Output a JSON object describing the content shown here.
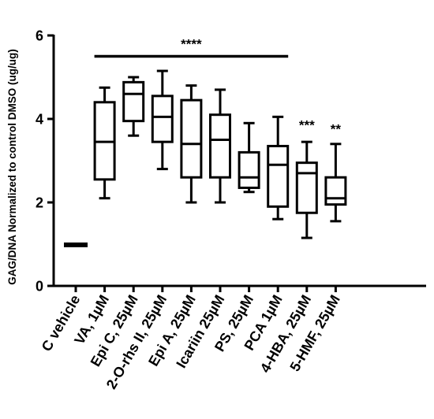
{
  "chart_data": {
    "type": "box",
    "title": "",
    "xlabel": "",
    "ylabel": "GAG/DNA Normalized to control DMSO (ug/ug)",
    "ylim": [
      0,
      6
    ],
    "yticks": [
      "0",
      "2",
      "4",
      "6"
    ],
    "grid": false,
    "legend": "none",
    "line_color": "#000000",
    "categories": [
      "C vehicle",
      "VA, 1µM",
      "Epi C, 25µM",
      "2-O-rhs II, 25µM",
      "Epi A, 25µM",
      "Icariin 25µM",
      "PS, 25µM",
      "PCA 1µM",
      "4-HBA, 25µM",
      "5-HMF, 25µM"
    ],
    "boxes": [
      {
        "min": 0.96,
        "q1": 0.96,
        "median": 1.0,
        "q3": 1.04,
        "max": 1.04
      },
      {
        "min": 2.1,
        "q1": 2.55,
        "median": 3.45,
        "q3": 4.4,
        "max": 4.75
      },
      {
        "min": 3.6,
        "q1": 3.95,
        "median": 4.6,
        "q3": 4.88,
        "max": 5.0
      },
      {
        "min": 2.8,
        "q1": 3.45,
        "median": 4.05,
        "q3": 4.55,
        "max": 5.15
      },
      {
        "min": 2.0,
        "q1": 2.6,
        "median": 3.4,
        "q3": 4.45,
        "max": 4.8
      },
      {
        "min": 2.0,
        "q1": 2.6,
        "median": 3.5,
        "q3": 4.1,
        "max": 4.7
      },
      {
        "min": 2.25,
        "q1": 2.35,
        "median": 2.6,
        "q3": 3.2,
        "max": 3.9
      },
      {
        "min": 1.6,
        "q1": 1.9,
        "median": 2.9,
        "q3": 3.35,
        "max": 4.05
      },
      {
        "min": 1.15,
        "q1": 1.75,
        "median": 2.7,
        "q3": 2.95,
        "max": 3.45
      },
      {
        "min": 1.55,
        "q1": 1.95,
        "median": 2.1,
        "q3": 2.6,
        "max": 3.4
      }
    ],
    "annotations": [
      {
        "text": "****",
        "type": "bracket",
        "from_category": 1,
        "to_category": 7,
        "y": 5.5
      },
      {
        "text": "***",
        "type": "label",
        "category": 8,
        "y": 3.9
      },
      {
        "text": "**",
        "type": "label",
        "category": 9,
        "y": 3.8
      }
    ]
  }
}
